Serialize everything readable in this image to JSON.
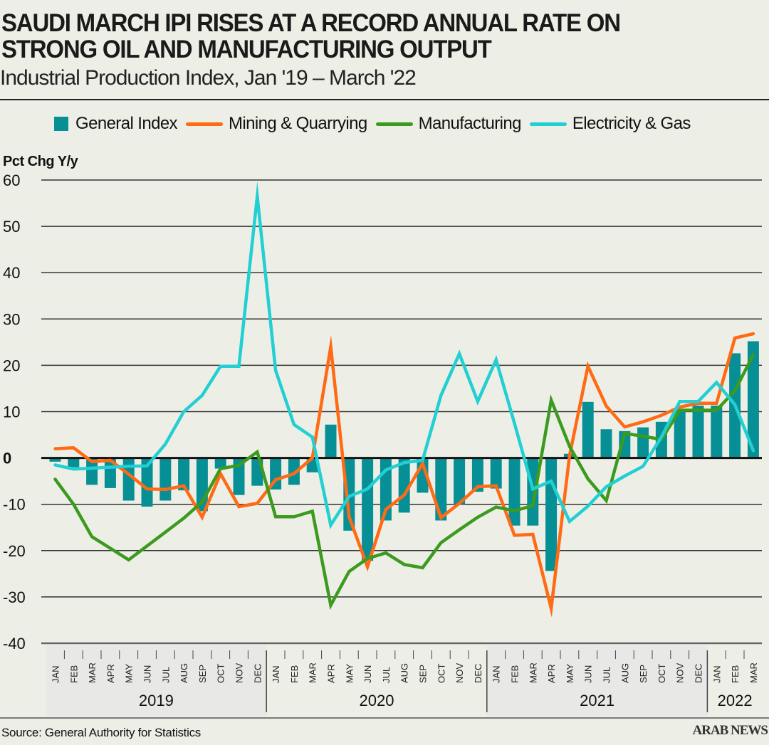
{
  "header": {
    "title_line1": "SAUDI MARCH IPI RISES AT A RECORD ANNUAL RATE ON",
    "title_line2": "STRONG OIL AND MANUFACTURING OUTPUT",
    "subtitle": "Industrial Production Index, Jan '19 – March '22"
  },
  "footer": {
    "source": "Source: General Authority for Statistics",
    "logo": "ARAB NEWS"
  },
  "colors": {
    "general_index": "#078f96",
    "mining": "#ff6a14",
    "manufacturing": "#3c9b1e",
    "electricity": "#22cfd2",
    "background": "#edefe7",
    "axis_band": "#e8e9e6"
  },
  "chart_data": {
    "type": "bar+line",
    "title": "SAUDI MARCH IPI RISES AT A RECORD ANNUAL RATE ON STRONG OIL AND MANUFACTURING OUTPUT",
    "subtitle": "Industrial Production Index, Jan '19 – March '22",
    "ylabel": "Pct Chg Y/y",
    "xlabel": "",
    "ylim": [
      -40,
      60
    ],
    "yticks": [
      60,
      50,
      40,
      30,
      20,
      10,
      0,
      -10,
      -20,
      -30,
      -40
    ],
    "grid": true,
    "legend_position": "top",
    "legend": [
      "General Index",
      "Mining & Quarrying",
      "Manufacturing",
      "Electricity & Gas"
    ],
    "years": [
      {
        "label": "2019",
        "months": 12
      },
      {
        "label": "2020",
        "months": 12
      },
      {
        "label": "2021",
        "months": 12
      },
      {
        "label": "2022",
        "months": 3
      }
    ],
    "categories": [
      "JAN",
      "FEB",
      "MAR",
      "APR",
      "MAY",
      "JUN",
      "JUL",
      "AUG",
      "SEP",
      "OCT",
      "NOV",
      "DEC",
      "JAN",
      "FEB",
      "MAR",
      "APR",
      "MAY",
      "JUN",
      "JUL",
      "AUG",
      "SEP",
      "OCT",
      "NOV",
      "DEC",
      "JAN",
      "FEB",
      "MAR",
      "APR",
      "MAY",
      "JUN",
      "JUL",
      "AUG",
      "SEP",
      "OCT",
      "NOV",
      "DEC",
      "JAN",
      "FEB",
      "MAR"
    ],
    "series": [
      {
        "name": "General Index",
        "kind": "bar",
        "values": [
          -0.8,
          -2.0,
          -5.8,
          -6.5,
          -9.2,
          -10.5,
          -9.2,
          -7.0,
          -11.5,
          -2.3,
          -8.0,
          -6.0,
          -6.8,
          -5.8,
          -3.1,
          7.2,
          -15.7,
          -22.2,
          -13.5,
          -11.8,
          -7.5,
          -13.5,
          -10.0,
          -7.3,
          -6.6,
          -14.6,
          -14.6,
          -24.4,
          0.9,
          12.1,
          6.2,
          5.8,
          6.6,
          7.8,
          10.5,
          11.3,
          11.3,
          22.6,
          25.2
        ]
      },
      {
        "name": "Mining & Quarrying",
        "kind": "line",
        "values": [
          2.0,
          2.2,
          -0.8,
          -0.5,
          -3.5,
          -6.7,
          -6.8,
          -6.0,
          -12.8,
          -3.4,
          -10.5,
          -9.8,
          -4.7,
          -3.4,
          0.0,
          24.0,
          -12.7,
          -23.5,
          -11.1,
          -8.0,
          -1.2,
          -12.9,
          -9.8,
          -6.2,
          -6.0,
          -16.7,
          -16.5,
          -32.5,
          0.5,
          19.8,
          11.2,
          6.7,
          7.8,
          9.2,
          11.0,
          11.8,
          11.8,
          25.9,
          26.8
        ]
      },
      {
        "name": "Manufacturing",
        "kind": "line",
        "values": [
          -4.6,
          -10.0,
          -17.0,
          -19.5,
          -22.0,
          -19.0,
          -16.0,
          -13.0,
          -9.5,
          -2.3,
          -1.6,
          1.3,
          -12.7,
          -12.7,
          -11.5,
          -31.8,
          -24.5,
          -21.7,
          -20.5,
          -23.0,
          -23.7,
          -18.3,
          -15.5,
          -12.8,
          -10.6,
          -11.4,
          -10.3,
          12.5,
          2.5,
          -4.5,
          -9.2,
          5.3,
          4.7,
          4.0,
          10.3,
          10.3,
          10.3,
          14.5,
          22.3
        ]
      },
      {
        "name": "Electricity & Gas",
        "kind": "line",
        "values": [
          -1.5,
          -2.4,
          -2.2,
          -2.0,
          -1.8,
          -1.7,
          3.0,
          10.0,
          13.5,
          19.8,
          19.8,
          56.5,
          18.9,
          7.2,
          4.5,
          -14.5,
          -8.3,
          -6.7,
          -2.6,
          -1.0,
          -0.5,
          13.5,
          22.5,
          12.2,
          21.2,
          7.5,
          -6.7,
          -5.0,
          -13.7,
          -10.4,
          -6.2,
          -3.9,
          -1.8,
          4.5,
          12.2,
          12.2,
          16.3,
          11.5,
          1.6
        ]
      }
    ]
  }
}
